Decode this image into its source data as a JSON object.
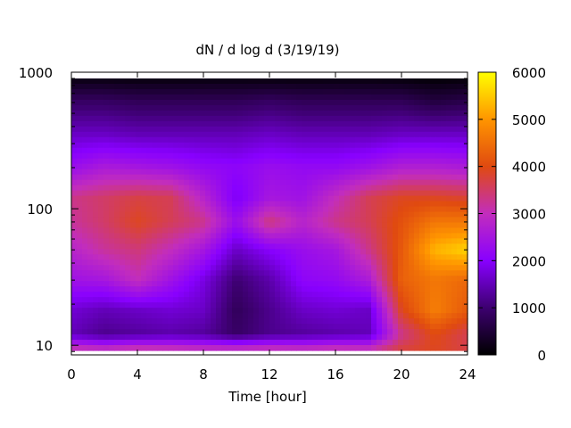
{
  "chart_data": {
    "type": "heatmap",
    "title": "dN / d log d (3/19/19)",
    "xlabel": "Time [hour]",
    "ylabel": "",
    "x_ticks": [
      "0",
      "4",
      "8",
      "12",
      "16",
      "20",
      "24"
    ],
    "x_tick_values": [
      0,
      4,
      8,
      12,
      16,
      20,
      24
    ],
    "xlim": [
      0,
      24
    ],
    "y_scale": "log",
    "y_ticks": [
      "10",
      "100",
      "1000"
    ],
    "y_tick_values": [
      10,
      100,
      1000
    ],
    "ylim": [
      8.5,
      1000
    ],
    "colorbar": {
      "ticks": [
        "0",
        "1000",
        "2000",
        "3000",
        "4000",
        "5000",
        "6000"
      ],
      "tick_values": [
        0,
        1000,
        2000,
        3000,
        4000,
        5000,
        6000
      ],
      "range": [
        0,
        6000
      ],
      "palette": [
        "#000000",
        "#3d0070",
        "#8800ff",
        "#c22dbd",
        "#e04a10",
        "#ff9500",
        "#ffff00"
      ]
    },
    "grid": false,
    "x": [
      0,
      2,
      4,
      6,
      8,
      10,
      12,
      14,
      16,
      18,
      20,
      22,
      24
    ],
    "y": [
      9,
      12,
      18,
      30,
      50,
      80,
      120,
      200,
      350,
      600,
      900
    ],
    "z": [
      [
        3400,
        3300,
        3500,
        3400,
        3300,
        3350,
        3400,
        3300,
        3400,
        3300,
        3800,
        3900,
        3700
      ],
      [
        1500,
        1200,
        1300,
        1400,
        1300,
        900,
        1200,
        1300,
        1400,
        1500,
        3300,
        4000,
        3600
      ],
      [
        1700,
        1500,
        1600,
        1700,
        1600,
        800,
        1200,
        1600,
        1700,
        1600,
        3900,
        4700,
        4200
      ],
      [
        2400,
        2500,
        3000,
        2400,
        1800,
        1000,
        1400,
        2100,
        2200,
        2600,
        4300,
        4600,
        4400
      ],
      [
        2800,
        3200,
        3400,
        3000,
        2500,
        1600,
        2000,
        2300,
        2500,
        3300,
        4200,
        5300,
        5600
      ],
      [
        3200,
        3500,
        3900,
        3600,
        3300,
        2300,
        3400,
        2800,
        3300,
        3600,
        4100,
        4600,
        4600
      ],
      [
        3300,
        3500,
        3700,
        3600,
        2800,
        1900,
        2500,
        2400,
        3000,
        3600,
        3900,
        3900,
        3800
      ],
      [
        2300,
        2600,
        2500,
        2400,
        2200,
        2100,
        2300,
        2200,
        2200,
        2400,
        2700,
        2700,
        2600
      ],
      [
        1600,
        1600,
        1500,
        1500,
        1500,
        1500,
        1600,
        1500,
        1500,
        1500,
        1600,
        1600,
        1600
      ],
      [
        900,
        900,
        800,
        800,
        800,
        800,
        900,
        800,
        800,
        800,
        800,
        600,
        700
      ],
      [
        150,
        150,
        120,
        120,
        130,
        130,
        120,
        120,
        130,
        120,
        100,
        50,
        80
      ]
    ]
  }
}
